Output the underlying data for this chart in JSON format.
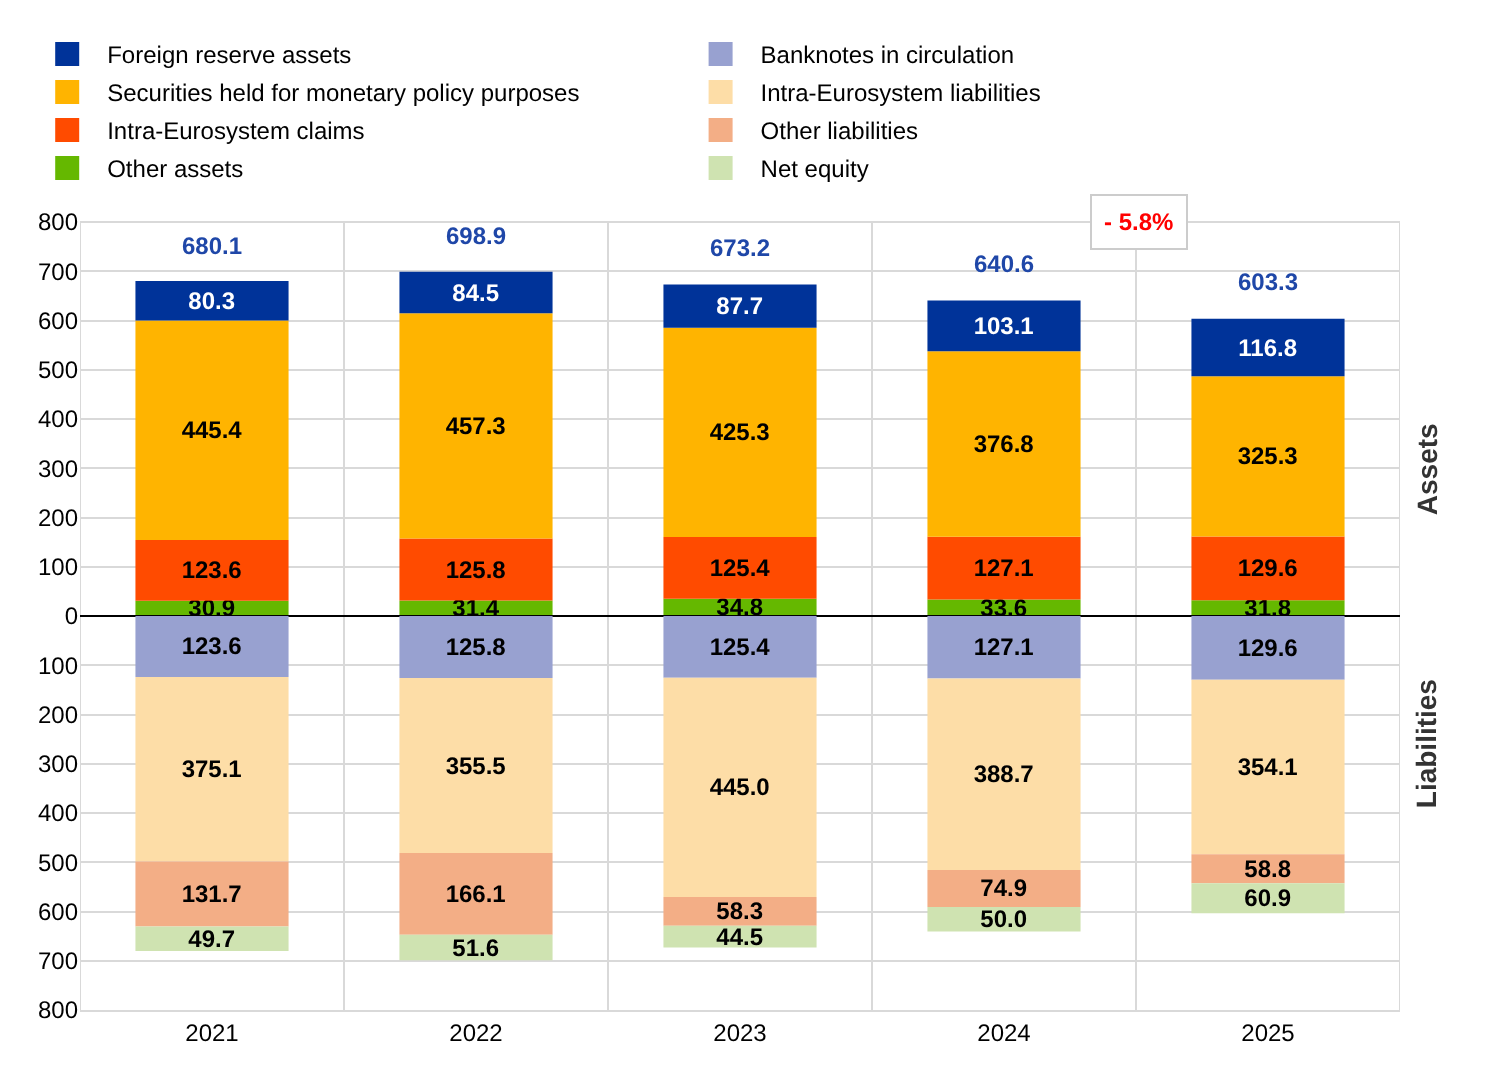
{
  "chart_data": [
    {
      "type": "bar",
      "stacked": true,
      "categories": [
        "2021",
        "2022",
        "2023",
        "2024",
        "2025"
      ],
      "series": [
        {
          "name": "Other assets",
          "color": "#65b800",
          "values": [
            30.9,
            31.4,
            34.8,
            33.6,
            31.8
          ]
        },
        {
          "name": "Intra-Eurosystem claims",
          "color": "#ff4b00",
          "values": [
            123.6,
            125.8,
            125.4,
            127.1,
            129.6
          ]
        },
        {
          "name": "Securities held for monetary policy purposes",
          "color": "#ffb400",
          "values": [
            445.4,
            457.3,
            425.3,
            376.8,
            325.3
          ]
        },
        {
          "name": "Foreign reserve assets",
          "color": "#003399",
          "values": [
            80.3,
            84.5,
            87.7,
            103.1,
            116.8
          ]
        }
      ],
      "totals": [
        "680.1",
        "698.9",
        "673.2",
        "640.6",
        "603.3"
      ],
      "data_labels": true,
      "ylim": [
        0,
        800
      ],
      "yticks": [
        0,
        100,
        200,
        300,
        400,
        500,
        600,
        700,
        800
      ],
      "grid": true,
      "legend": "top left",
      "tick_labels": "y",
      "annotations": [
        "- 5.8%",
        "Assets"
      ]
    },
    {
      "type": "bar",
      "stacked": true,
      "categories": [
        "2021",
        "2022",
        "2023",
        "2024",
        "2025"
      ],
      "series": [
        {
          "name": "Banknotes in circulation",
          "color": "#98a1d0",
          "values": [
            123.6,
            125.8,
            125.4,
            127.1,
            129.6
          ]
        },
        {
          "name": "Intra-Eurosystem liabilities",
          "color": "#fddda7",
          "values": [
            375.1,
            355.5,
            445.0,
            388.7,
            354.1
          ],
          "value_labels": [
            "375.1",
            "355.5",
            "445.0",
            "388.7",
            "354.1"
          ]
        },
        {
          "name": "Other liabilities",
          "color": "#f3ae86",
          "values": [
            131.7,
            166.1,
            58.3,
            74.9,
            58.8
          ]
        },
        {
          "name": "Net equity",
          "color": "#cfe3b1",
          "values": [
            49.7,
            51.6,
            44.5,
            50.0,
            60.9
          ],
          "value_labels": [
            "49.7",
            "51.6",
            "44.5",
            "50.0",
            "60.9"
          ]
        }
      ],
      "data_labels": true,
      "ylim": [
        800,
        0
      ],
      "yticks": [
        100,
        200,
        300,
        400,
        500,
        600,
        700,
        800
      ],
      "grid": true,
      "legend": "top",
      "annotations": [
        "Liabilities"
      ]
    }
  ]
}
